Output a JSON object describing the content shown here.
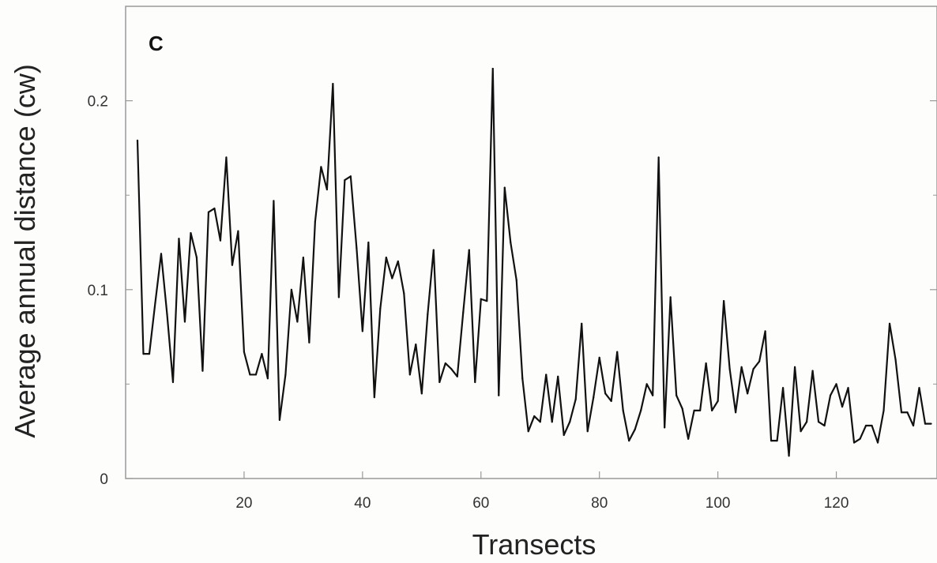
{
  "chart_data": {
    "type": "line",
    "panel_label": "C",
    "title": "",
    "xlabel": "Transects",
    "ylabel": "Average annual distance (cw)",
    "xlim": [
      0,
      137
    ],
    "ylim": [
      0,
      0.25
    ],
    "xticks": [
      20,
      40,
      60,
      80,
      100,
      120
    ],
    "xtick_labels": [
      "20",
      "40",
      "60",
      "80",
      "100",
      "120"
    ],
    "yticks": [
      0,
      0.1,
      0.2
    ],
    "ytick_labels": [
      "0",
      "0.1",
      "0.2"
    ],
    "minor_yticks": [
      0.05,
      0.15
    ],
    "grid": false,
    "legend": "none",
    "colors": {
      "line": "#111111",
      "axis": "#999999",
      "background": "#fdfdfc"
    },
    "series": [
      {
        "x": [
          2,
          3,
          4,
          5,
          6,
          7,
          8,
          9,
          10,
          11,
          12,
          13,
          14,
          15,
          16,
          17,
          18,
          19,
          20,
          21,
          22,
          23,
          24,
          25,
          26,
          27,
          28,
          29,
          30,
          31,
          32,
          33,
          34,
          35,
          36,
          37,
          38,
          39,
          40,
          41,
          42,
          43,
          44,
          45,
          46,
          47,
          48,
          49,
          50,
          51,
          52,
          53,
          54,
          55,
          56,
          57,
          58,
          59,
          60,
          61,
          62,
          63,
          64,
          65,
          66,
          67,
          68,
          69,
          70,
          71,
          72,
          73,
          74,
          75,
          76,
          77,
          78,
          79,
          80,
          81,
          82,
          83,
          84,
          85,
          86,
          87,
          88,
          89,
          90,
          91,
          92,
          93,
          94,
          95,
          96,
          97,
          98,
          99,
          100,
          101,
          102,
          103,
          104,
          105,
          106,
          107,
          108,
          109,
          110,
          111,
          112,
          113,
          114,
          115,
          116,
          117,
          118,
          119,
          120,
          121,
          122,
          123,
          124,
          125,
          126,
          127,
          128,
          129,
          130,
          131,
          132,
          133,
          134,
          135,
          136
        ],
        "values": [
          0.179,
          0.066,
          0.066,
          0.093,
          0.119,
          0.087,
          0.051,
          0.127,
          0.083,
          0.13,
          0.117,
          0.057,
          0.141,
          0.143,
          0.126,
          0.17,
          0.113,
          0.131,
          0.067,
          0.055,
          0.055,
          0.066,
          0.053,
          0.147,
          0.031,
          0.055,
          0.1,
          0.083,
          0.117,
          0.072,
          0.136,
          0.165,
          0.153,
          0.209,
          0.096,
          0.158,
          0.16,
          0.122,
          0.078,
          0.125,
          0.043,
          0.09,
          0.117,
          0.106,
          0.115,
          0.098,
          0.055,
          0.071,
          0.045,
          0.087,
          0.121,
          0.051,
          0.061,
          0.058,
          0.054,
          0.088,
          0.121,
          0.051,
          0.095,
          0.094,
          0.217,
          0.044,
          0.154,
          0.125,
          0.105,
          0.053,
          0.025,
          0.033,
          0.03,
          0.055,
          0.03,
          0.054,
          0.023,
          0.03,
          0.042,
          0.082,
          0.025,
          0.043,
          0.064,
          0.045,
          0.041,
          0.067,
          0.036,
          0.02,
          0.026,
          0.036,
          0.05,
          0.044,
          0.17,
          0.027,
          0.096,
          0.044,
          0.037,
          0.021,
          0.036,
          0.036,
          0.061,
          0.036,
          0.041,
          0.094,
          0.058,
          0.035,
          0.059,
          0.045,
          0.058,
          0.062,
          0.078,
          0.02,
          0.02,
          0.048,
          0.012,
          0.059,
          0.025,
          0.03,
          0.057,
          0.03,
          0.028,
          0.044,
          0.05,
          0.038,
          0.048,
          0.019,
          0.021,
          0.028,
          0.028,
          0.019,
          0.036,
          0.082,
          0.063,
          0.035,
          0.035,
          0.028,
          0.048,
          0.029,
          0.029
        ]
      }
    ]
  }
}
